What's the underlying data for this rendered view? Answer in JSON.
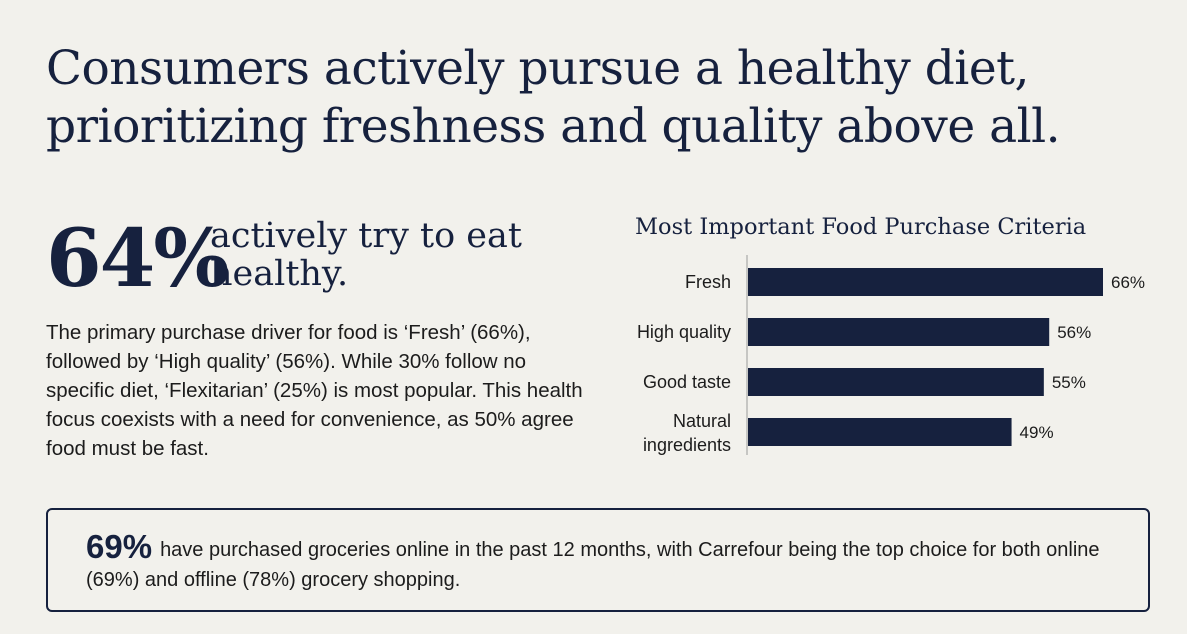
{
  "title": {
    "line1": "Consumers actively pursue a healthy diet,",
    "line2": "prioritizing freshness and quality above all."
  },
  "stat": {
    "value": "64%",
    "text": "actively try to eat healthy."
  },
  "body": "The primary purchase driver for food is ‘Fresh’ (66%), followed by ‘High quality’ (56%). While 30% follow no specific diet, ‘Flexitarian’ (25%) is most popular. This health focus coexists with a need for convenience, as 50% agree food must be fast.",
  "callout": {
    "value": "69%",
    "text": "have purchased groceries online in the past 12 months, with Carrefour being the top choice for both online (69%) and offline (78%) grocery shopping."
  },
  "colors": {
    "bar": "#16213e",
    "text": "#1c1c1c",
    "axis": "#9a9a9a"
  },
  "chart_data": {
    "type": "bar",
    "orientation": "horizontal",
    "title": "Most Important Food Purchase Criteria",
    "categories": [
      "Fresh",
      "High quality",
      "Good taste",
      "Natural ingredients"
    ],
    "values": [
      66,
      56,
      55,
      49
    ],
    "value_labels": [
      "66%",
      "56%",
      "55%",
      "49%"
    ],
    "unit": "%",
    "xlim": [
      0,
      66
    ],
    "xlabel": "",
    "ylabel": "",
    "grid": false,
    "legend": "none"
  }
}
